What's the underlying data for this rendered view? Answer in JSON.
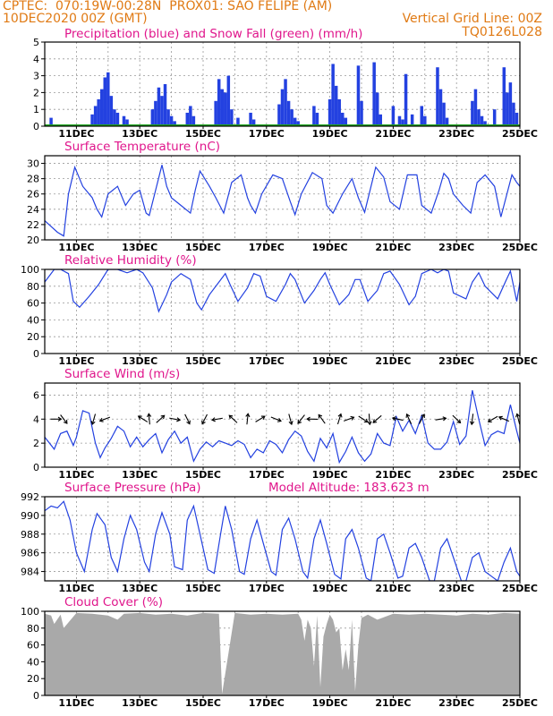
{
  "header": {
    "line1_left": "CPTEC:  070:19W-00:28N  PROX01: SAO FELIPE (AM)",
    "line2_left": "10DEC2020 00Z (GMT)",
    "line2_right": "Vertical Grid Line: 00Z",
    "line3_right": "TQ0126L028"
  },
  "colors": {
    "header": "#e07a14",
    "title": "#e0168c",
    "series": "#2341e0",
    "snow": "#1fa31f",
    "cloud": "#a9a9a9",
    "grid": "#999999"
  },
  "x_axis_labels": [
    "11DEC",
    "13DEC",
    "15DEC",
    "17DEC",
    "19DEC",
    "21DEC",
    "23DEC",
    "25DEC"
  ],
  "chart_data": [
    {
      "type": "bar",
      "title": "Precipitation (blue) and Snow Fall (green) (mm/h)",
      "x_range_days": [
        10,
        25
      ],
      "ylim": [
        0,
        5
      ],
      "yticks": [
        0,
        1,
        2,
        3,
        4,
        5
      ],
      "grid": true,
      "series": [
        {
          "name": "Precipitation",
          "color": "#2341e0",
          "x": [
            10.2,
            11.5,
            11.6,
            11.7,
            11.8,
            11.9,
            12.0,
            12.1,
            12.2,
            12.3,
            12.5,
            12.6,
            13.4,
            13.5,
            13.6,
            13.7,
            13.8,
            13.9,
            14.0,
            14.1,
            14.5,
            14.6,
            14.7,
            15.4,
            15.5,
            15.6,
            15.7,
            15.8,
            15.9,
            16.1,
            16.5,
            16.6,
            17.4,
            17.5,
            17.6,
            17.7,
            17.8,
            17.9,
            18.0,
            18.5,
            18.6,
            19.0,
            19.1,
            19.2,
            19.3,
            19.4,
            19.5,
            19.9,
            20.0,
            20.4,
            20.5,
            20.6,
            21.0,
            21.2,
            21.3,
            21.4,
            21.6,
            21.9,
            22.0,
            22.4,
            22.5,
            22.6,
            22.7,
            23.5,
            23.6,
            23.7,
            23.8,
            23.9,
            24.2,
            24.5,
            24.6,
            24.7,
            24.8,
            24.9
          ],
          "values": [
            0.5,
            0.7,
            1.2,
            1.6,
            2.2,
            2.9,
            3.2,
            1.8,
            1.0,
            0.8,
            0.6,
            0.4,
            1.0,
            1.5,
            2.3,
            1.8,
            2.5,
            1.0,
            0.6,
            0.3,
            0.8,
            1.2,
            0.6,
            1.5,
            2.8,
            2.2,
            2.0,
            3.0,
            1.0,
            0.5,
            0.8,
            0.4,
            1.3,
            2.2,
            2.8,
            1.5,
            1.0,
            0.5,
            0.3,
            1.2,
            0.8,
            1.6,
            3.7,
            2.4,
            1.6,
            0.8,
            0.5,
            3.6,
            1.5,
            3.8,
            2.0,
            0.7,
            1.2,
            0.6,
            0.4,
            3.1,
            0.7,
            1.2,
            0.6,
            3.5,
            2.2,
            1.4,
            0.5,
            1.5,
            2.2,
            1.0,
            0.6,
            0.3,
            1.0,
            3.5,
            2.0,
            2.6,
            1.4,
            0.8
          ]
        },
        {
          "name": "Snow Fall",
          "color": "#1fa31f",
          "x": [
            10,
            25
          ],
          "values": [
            0,
            0
          ]
        }
      ]
    },
    {
      "type": "line",
      "title": "Surface Temperature (nC)",
      "x_range_days": [
        10,
        25
      ],
      "ylim": [
        20,
        31
      ],
      "yticks": [
        20,
        22,
        24,
        26,
        28,
        30
      ],
      "grid": true,
      "series": [
        {
          "color": "#2341e0",
          "x": [
            10.0,
            10.4,
            10.6,
            10.75,
            10.95,
            11.2,
            11.5,
            11.65,
            11.8,
            12.0,
            12.3,
            12.55,
            12.8,
            13.0,
            13.2,
            13.3,
            13.5,
            13.7,
            13.85,
            14.0,
            14.3,
            14.6,
            14.75,
            14.9,
            15.2,
            15.4,
            15.65,
            15.9,
            16.2,
            16.4,
            16.5,
            16.65,
            16.85,
            17.2,
            17.5,
            17.75,
            17.9,
            18.1,
            18.45,
            18.75,
            18.9,
            19.1,
            19.4,
            19.7,
            19.9,
            20.1,
            20.45,
            20.7,
            20.9,
            21.2,
            21.45,
            21.75,
            21.9,
            22.2,
            22.45,
            22.6,
            22.75,
            22.9,
            23.2,
            23.45,
            23.65,
            23.9,
            24.2,
            24.4,
            24.75,
            24.9,
            25.0
          ],
          "values": [
            22.5,
            21.0,
            20.5,
            26.0,
            29.5,
            27.0,
            25.5,
            24.0,
            23.0,
            26.0,
            27.0,
            24.5,
            26.0,
            26.5,
            23.5,
            23.2,
            26.5,
            29.8,
            27.0,
            25.5,
            24.5,
            23.5,
            26.5,
            29.0,
            27.0,
            25.5,
            23.5,
            27.5,
            28.5,
            25.5,
            24.5,
            23.5,
            26.0,
            28.5,
            28.0,
            25.0,
            23.3,
            26.0,
            28.8,
            28.0,
            24.5,
            23.5,
            26.0,
            28.0,
            25.5,
            23.6,
            29.5,
            28.2,
            25.0,
            24.0,
            28.5,
            28.5,
            24.5,
            23.5,
            26.5,
            28.7,
            28.0,
            26.0,
            24.5,
            23.5,
            27.5,
            28.5,
            27.0,
            23.0,
            28.5,
            27.5,
            27.0
          ]
        }
      ]
    },
    {
      "type": "line",
      "title": "Relative Humidity (%)",
      "x_range_days": [
        10,
        25
      ],
      "ylim": [
        0,
        100
      ],
      "yticks": [
        0,
        20,
        40,
        60,
        80,
        100
      ],
      "grid": true,
      "series": [
        {
          "color": "#2341e0",
          "x": [
            10.0,
            10.3,
            10.5,
            10.75,
            10.9,
            11.1,
            11.4,
            11.7,
            11.9,
            12.0,
            12.3,
            12.6,
            12.9,
            13.1,
            13.4,
            13.6,
            13.7,
            13.85,
            14.0,
            14.3,
            14.6,
            14.8,
            14.95,
            15.2,
            15.5,
            15.7,
            15.85,
            16.1,
            16.4,
            16.6,
            16.8,
            17.0,
            17.3,
            17.6,
            17.75,
            17.9,
            18.2,
            18.5,
            18.7,
            18.85,
            19.0,
            19.3,
            19.6,
            19.8,
            19.95,
            20.2,
            20.5,
            20.7,
            20.9,
            21.2,
            21.5,
            21.7,
            21.9,
            22.2,
            22.4,
            22.6,
            22.75,
            22.9,
            23.3,
            23.5,
            23.7,
            23.9,
            24.3,
            24.55,
            24.7,
            24.9,
            25.0
          ],
          "values": [
            85,
            100,
            100,
            95,
            62,
            55,
            68,
            82,
            94,
            100,
            100,
            96,
            100,
            96,
            78,
            50,
            58,
            70,
            85,
            95,
            88,
            60,
            52,
            70,
            85,
            95,
            82,
            62,
            78,
            95,
            92,
            68,
            62,
            82,
            95,
            88,
            60,
            75,
            88,
            96,
            82,
            58,
            70,
            88,
            88,
            62,
            75,
            95,
            98,
            82,
            58,
            68,
            95,
            100,
            96,
            100,
            98,
            72,
            65,
            85,
            96,
            80,
            65,
            86,
            98,
            62,
            85
          ]
        }
      ]
    },
    {
      "type": "line",
      "title": "Surface Wind (m/s)",
      "x_range_days": [
        10,
        25
      ],
      "ylim": [
        0,
        7
      ],
      "yticks": [
        0,
        2,
        4,
        6
      ],
      "grid": true,
      "series": [
        {
          "color": "#2341e0",
          "x": [
            10.0,
            10.3,
            10.5,
            10.7,
            10.9,
            11.0,
            11.2,
            11.4,
            11.6,
            11.75,
            11.9,
            12.1,
            12.3,
            12.5,
            12.7,
            12.9,
            13.1,
            13.3,
            13.5,
            13.7,
            13.9,
            14.1,
            14.3,
            14.5,
            14.7,
            14.9,
            15.1,
            15.3,
            15.5,
            15.7,
            15.9,
            16.1,
            16.3,
            16.5,
            16.7,
            16.9,
            17.1,
            17.3,
            17.5,
            17.7,
            17.9,
            18.1,
            18.3,
            18.5,
            18.7,
            18.9,
            19.1,
            19.3,
            19.5,
            19.7,
            19.9,
            20.1,
            20.3,
            20.5,
            20.7,
            20.9,
            21.1,
            21.3,
            21.5,
            21.7,
            21.9,
            22.1,
            22.3,
            22.5,
            22.7,
            22.9,
            23.1,
            23.3,
            23.5,
            23.7,
            23.9,
            24.1,
            24.3,
            24.5,
            24.7,
            24.9,
            25.0
          ],
          "values": [
            2.5,
            1.5,
            2.8,
            3.0,
            1.8,
            2.5,
            4.7,
            4.5,
            2.0,
            0.8,
            1.6,
            2.4,
            3.4,
            3.0,
            1.7,
            2.5,
            1.7,
            2.3,
            2.8,
            1.2,
            2.3,
            3.0,
            2.0,
            2.5,
            0.5,
            1.5,
            2.1,
            1.7,
            2.2,
            2.0,
            1.8,
            2.2,
            1.9,
            0.8,
            1.5,
            1.2,
            2.2,
            1.9,
            1.2,
            2.3,
            3.0,
            2.6,
            1.3,
            0.5,
            2.4,
            1.6,
            2.8,
            0.4,
            1.3,
            2.5,
            1.2,
            0.5,
            1.1,
            2.8,
            2.0,
            1.8,
            4.2,
            3.0,
            3.9,
            2.8,
            4.3,
            2.0,
            1.5,
            1.5,
            2.1,
            3.8,
            1.9,
            2.6,
            6.4,
            4.0,
            1.8,
            2.7,
            3.0,
            2.8,
            5.2,
            3.0,
            2.0
          ]
        }
      ],
      "wind_barbs_x": [
        10.35,
        10.6,
        11.55,
        11.9,
        13.1,
        13.3,
        13.65,
        14.1,
        14.5,
        15.05,
        15.45,
        15.95,
        16.4,
        16.8,
        17.3,
        17.75,
        18.1,
        18.45,
        18.75,
        19.3,
        19.6,
        20.05,
        20.25,
        20.5,
        21.15,
        21.5,
        21.9,
        22.5,
        23.0,
        23.5,
        24.15,
        24.5,
        24.95
      ]
    },
    {
      "type": "line",
      "title": "Surface Pressure (hPa)",
      "annotation": "Model Altitude: 183.623 m",
      "x_range_days": [
        10,
        25
      ],
      "ylim": [
        983,
        992
      ],
      "yticks": [
        984,
        986,
        988,
        990,
        992
      ],
      "grid": true,
      "series": [
        {
          "color": "#2341e0",
          "x": [
            10.0,
            10.2,
            10.4,
            10.6,
            10.8,
            11.0,
            11.25,
            11.5,
            11.65,
            11.9,
            12.1,
            12.3,
            12.5,
            12.7,
            12.9,
            13.15,
            13.3,
            13.5,
            13.7,
            13.95,
            14.1,
            14.35,
            14.5,
            14.7,
            14.9,
            15.15,
            15.35,
            15.55,
            15.7,
            15.9,
            16.15,
            16.3,
            16.5,
            16.7,
            16.9,
            17.15,
            17.3,
            17.5,
            17.7,
            17.9,
            18.15,
            18.3,
            18.5,
            18.7,
            18.9,
            19.15,
            19.35,
            19.5,
            19.7,
            19.9,
            20.15,
            20.3,
            20.5,
            20.7,
            20.9,
            21.15,
            21.3,
            21.5,
            21.7,
            21.9,
            22.15,
            22.3,
            22.5,
            22.7,
            22.9,
            23.15,
            23.3,
            23.5,
            23.7,
            23.9,
            24.1,
            24.3,
            24.5,
            24.7,
            24.9,
            25.0
          ],
          "values": [
            990.5,
            991.0,
            990.8,
            991.5,
            989.5,
            986.0,
            984.0,
            988.5,
            990.2,
            989.0,
            985.5,
            984.0,
            987.5,
            990.0,
            988.5,
            985.0,
            984.0,
            988.0,
            990.3,
            988.0,
            984.5,
            984.2,
            989.5,
            991.0,
            988.0,
            984.2,
            983.8,
            988.0,
            991.0,
            988.5,
            984.0,
            983.7,
            987.5,
            989.5,
            987.0,
            984.0,
            983.6,
            988.5,
            989.7,
            987.5,
            984.0,
            983.3,
            987.5,
            989.5,
            987.0,
            983.7,
            983.2,
            987.5,
            988.5,
            986.5,
            983.3,
            983.0,
            987.5,
            988.0,
            986.0,
            983.3,
            983.5,
            986.5,
            987.0,
            985.5,
            983.0,
            983.0,
            986.5,
            987.5,
            985.5,
            983.0,
            983.0,
            985.5,
            986.0,
            984.0,
            983.5,
            983.0,
            985.0,
            986.5,
            984.0,
            983.5
          ]
        }
      ]
    },
    {
      "type": "area",
      "title": "Cloud Cover (%)",
      "x_range_days": [
        10,
        25
      ],
      "ylim": [
        0,
        100
      ],
      "yticks": [
        0,
        20,
        40,
        60,
        80,
        100
      ],
      "grid": true,
      "series": [
        {
          "color": "#a9a9a9",
          "x": [
            10.0,
            10.2,
            10.3,
            10.5,
            10.6,
            11.0,
            11.5,
            12.0,
            12.3,
            12.5,
            13.0,
            13.5,
            14.0,
            14.5,
            15.0,
            15.5,
            15.6,
            16.0,
            16.5,
            17.0,
            17.5,
            18.0,
            18.1,
            18.2,
            18.3,
            18.4,
            18.5,
            18.6,
            18.7,
            18.8,
            18.9,
            19.0,
            19.1,
            19.2,
            19.3,
            19.4,
            19.5,
            19.6,
            19.7,
            19.8,
            19.9,
            20.0,
            20.2,
            20.5,
            21.0,
            21.5,
            22.0,
            22.5,
            23.0,
            23.5,
            24.0,
            24.5,
            25.0
          ],
          "values": [
            97,
            95,
            85,
            96,
            80,
            98,
            97,
            95,
            90,
            97,
            98,
            96,
            97,
            95,
            98,
            97,
            2,
            98,
            96,
            97,
            96,
            97,
            90,
            65,
            90,
            80,
            35,
            95,
            10,
            70,
            85,
            96,
            90,
            75,
            80,
            30,
            55,
            30,
            90,
            5,
            60,
            92,
            96,
            90,
            97,
            96,
            97,
            96,
            95,
            97,
            96,
            98,
            97
          ]
        }
      ]
    }
  ]
}
